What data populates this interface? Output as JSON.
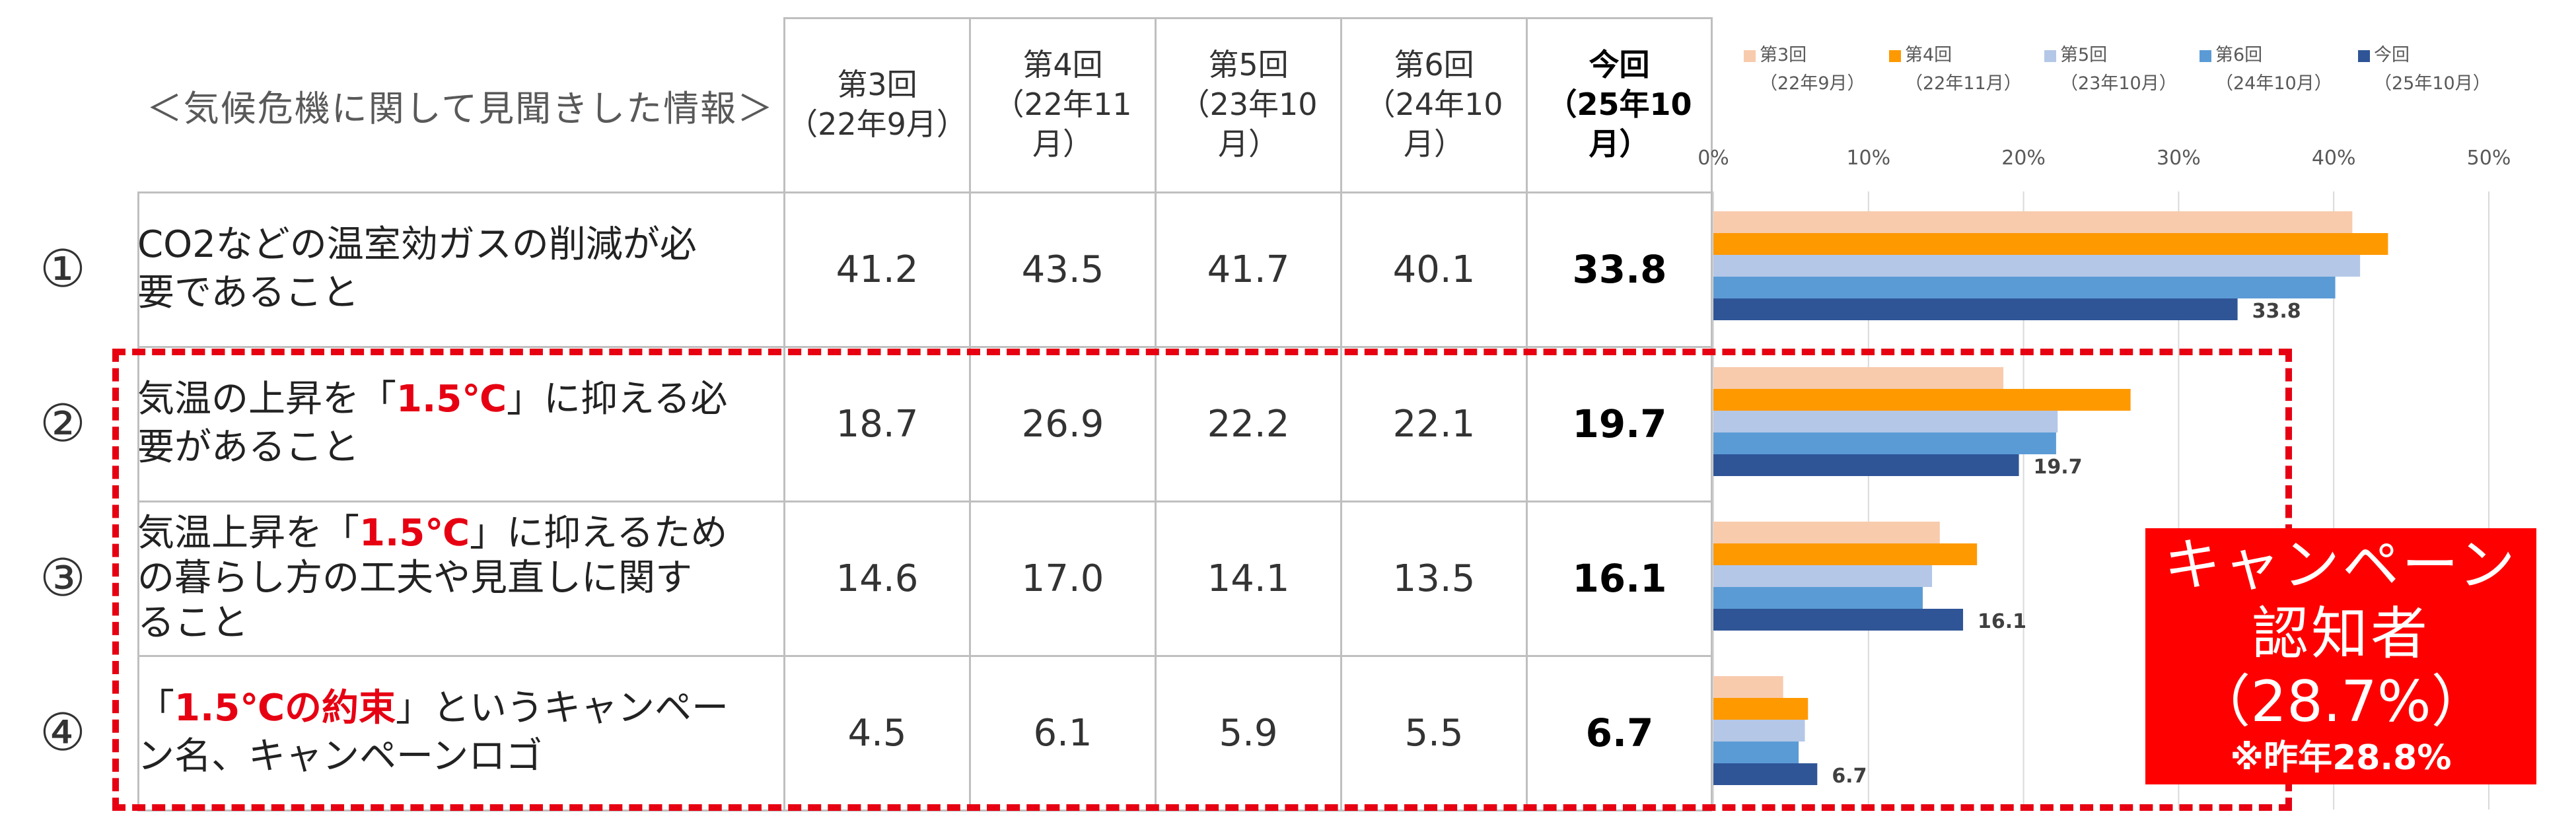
{
  "table": {
    "title": "＜気候危機に関して見聞きした情報＞",
    "columns": [
      {
        "line1": "第3回",
        "line2": "（22年9月）"
      },
      {
        "line1": "第4回",
        "line2": "（22年11月）"
      },
      {
        "line1": "第5回",
        "line2": "（23年10月）"
      },
      {
        "line1": "第6回",
        "line2": "（24年10月）"
      },
      {
        "line1": "今回",
        "line2": "（25年10月）"
      }
    ],
    "rows": [
      {
        "num": "①",
        "label_a": "CO2などの温室効ガスの削減が必",
        "label_red": "",
        "label_b": "",
        "label_c": "要であること",
        "values": [
          "41.2",
          "43.5",
          "41.7",
          "40.1",
          "33.8"
        ]
      },
      {
        "num": "②",
        "label_a": "気温の上昇を「",
        "label_red": "1.5℃",
        "label_b": "」に抑える必",
        "label_c": "要があること",
        "values": [
          "18.7",
          "26.9",
          "22.2",
          "22.1",
          "19.7"
        ]
      },
      {
        "num": "③",
        "label_a": "気温上昇を「",
        "label_red": "1.5℃",
        "label_b": "」に抑えるため",
        "label_c": "の暮らし方の工夫や見直しに関す",
        "label_d": "ること",
        "values": [
          "14.6",
          "17.0",
          "14.1",
          "13.5",
          "16.1"
        ]
      },
      {
        "num": "④",
        "label_a": "「",
        "label_red": "1.5℃の約束",
        "label_b": "」というキャンペー",
        "label_c": "ン名、キャンペーンロゴ",
        "values": [
          "4.5",
          "6.1",
          "5.9",
          "5.5",
          "6.7"
        ]
      }
    ]
  },
  "chart_data": {
    "type": "bar",
    "orientation": "horizontal",
    "categories": [
      "①",
      "②",
      "③",
      "④"
    ],
    "series": [
      {
        "name": "第3回",
        "sub": "（22年9月）",
        "color": "#f8cbad",
        "values": [
          41.2,
          18.7,
          14.6,
          4.5
        ]
      },
      {
        "name": "第4回",
        "sub": "（22年11月）",
        "color": "#ff9900",
        "values": [
          43.5,
          26.9,
          17.0,
          6.1
        ]
      },
      {
        "name": "第5回",
        "sub": "（23年10月）",
        "color": "#b4c7e7",
        "values": [
          41.7,
          22.2,
          14.1,
          5.9
        ]
      },
      {
        "name": "第6回",
        "sub": "（24年10月）",
        "color": "#5b9bd5",
        "values": [
          40.1,
          22.1,
          13.5,
          5.5
        ]
      },
      {
        "name": "今回",
        "sub": "（25年10月）",
        "color": "#2f5597",
        "values": [
          33.8,
          19.7,
          16.1,
          6.7
        ]
      }
    ],
    "data_labels": [
      "33.8",
      "19.7",
      "16.1",
      "6.7"
    ],
    "xlim": [
      0,
      50
    ],
    "ticks": [
      "0%",
      "10%",
      "20%",
      "30%",
      "40%",
      "50%"
    ],
    "grid": true,
    "legend_position": "top"
  },
  "callout": {
    "line1": "キャンペーン",
    "line2": "認知者",
    "line3": "（28.7%）",
    "line4": "※昨年28.8%"
  }
}
